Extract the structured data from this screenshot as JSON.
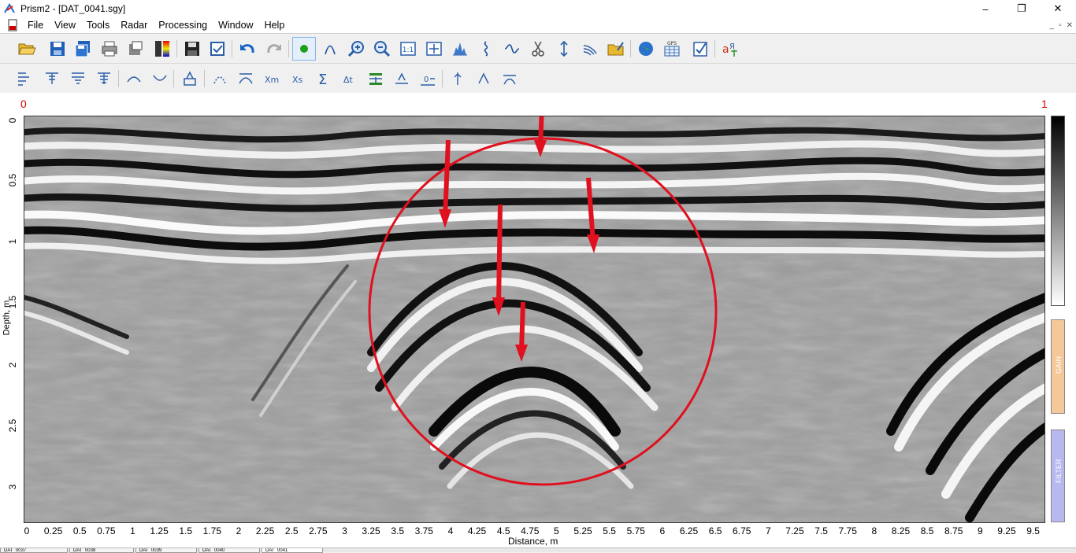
{
  "window": {
    "title": "Prism2 - [DAT_0041.sgy]",
    "minimize": "–",
    "maximize": "❐",
    "close": "✕"
  },
  "menu": {
    "items": [
      "File",
      "View",
      "Tools",
      "Radar",
      "Processing",
      "Window",
      "Help"
    ],
    "mdi_min": "_",
    "mdi_restore": "▫",
    "mdi_close": "✕"
  },
  "viewer": {
    "range_left": "0",
    "range_right": "1",
    "y_axis_label": "Depth, m",
    "x_axis_label": "Distance, m",
    "y_ticks": [
      "0",
      "0.5",
      "1",
      "1.5",
      "2",
      "2.5",
      "3"
    ],
    "x_ticks": [
      "0",
      "0.25",
      "0.5",
      "0.75",
      "1",
      "1.25",
      "1.5",
      "1.75",
      "2",
      "2.25",
      "2.5",
      "2.75",
      "3",
      "3.25",
      "3.5",
      "3.75",
      "4",
      "4.25",
      "4.5",
      "4.75",
      "5",
      "5.25",
      "5.5",
      "5.75",
      "6",
      "6.25",
      "6.5",
      "6.75",
      "7",
      "7.25",
      "7.5",
      "7.75",
      "8",
      "8.25",
      "8.5",
      "8.75",
      "9",
      "9.25",
      "9.5"
    ],
    "gain_label": "GAIN",
    "filter_label": "FILTER",
    "annotation_color": "#e0101e"
  },
  "tabs": [
    "DAT_0037",
    "DAT_0038",
    "DAT_0039",
    "DAT_0040",
    "DAT_0041"
  ]
}
